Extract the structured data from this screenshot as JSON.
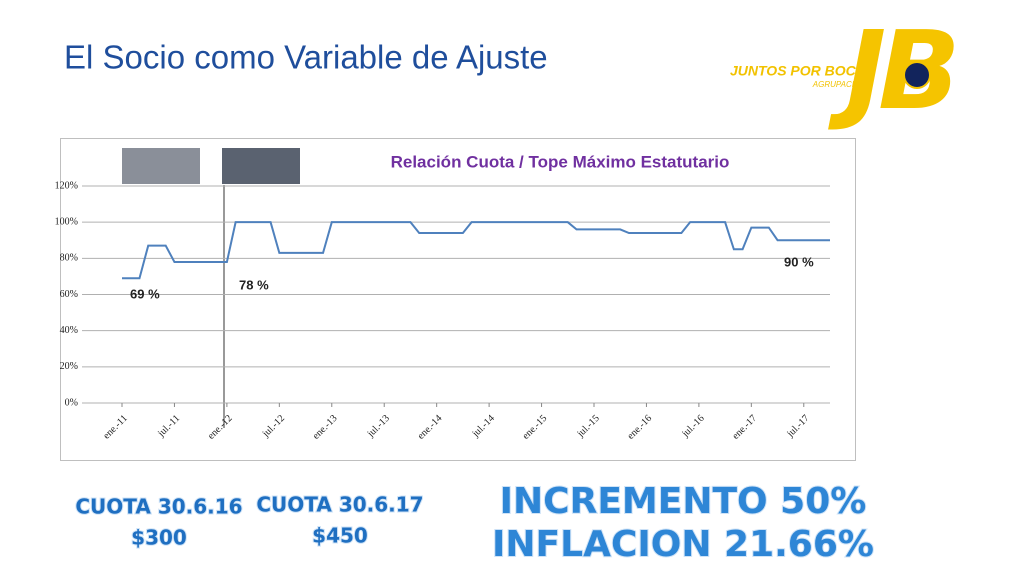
{
  "slide": {
    "title": "El Socio como Variable de Ajuste",
    "logo_name": "JUNTOS POR BOCA",
    "logo_sub": "AGRUPACIÓN",
    "logo_mark": "JB",
    "cuota_1_label": "CUOTA 30.6.16",
    "cuota_1_value": "$300",
    "cuota_2_label": "CUOTA 30.6.17",
    "cuota_2_value": "$450",
    "increase": "INCREMENTO 50%",
    "inflation": "INFLACION 21.66%"
  },
  "chart_data": {
    "type": "line",
    "title": "Relación Cuota / Tope Máximo Estatutario",
    "categories": [
      "ene.-11",
      null,
      null,
      null,
      null,
      null,
      "jul.-11",
      null,
      null,
      null,
      null,
      null,
      "ene.-12",
      null,
      null,
      null,
      null,
      null,
      "jul.-12",
      null,
      null,
      null,
      null,
      null,
      "ene.-13",
      null,
      null,
      null,
      null,
      null,
      "jul.-13",
      null,
      null,
      null,
      null,
      null,
      "ene.-14",
      null,
      null,
      null,
      null,
      null,
      "jul.-14",
      null,
      null,
      null,
      null,
      null,
      "ene.-15",
      null,
      null,
      null,
      null,
      null,
      "jul.-15",
      null,
      null,
      null,
      null,
      null,
      "ene.-16",
      null,
      null,
      null,
      null,
      null,
      "jul.-16",
      null,
      null,
      null,
      null,
      null,
      "ene.-17",
      null,
      null,
      null,
      null,
      null,
      "jul.-17",
      null,
      null,
      null
    ],
    "series": [
      {
        "name": "Relación",
        "color": "#4f81bd",
        "values": [
          69,
          69,
          69,
          87,
          87,
          87,
          78,
          78,
          78,
          78,
          78,
          78,
          78,
          100,
          100,
          100,
          100,
          100,
          83,
          83,
          83,
          83,
          83,
          83,
          100,
          100,
          100,
          100,
          100,
          100,
          100,
          100,
          100,
          100,
          94,
          94,
          94,
          94,
          94,
          94,
          100,
          100,
          100,
          100,
          100,
          100,
          100,
          100,
          100,
          100,
          100,
          100,
          96,
          96,
          96,
          96,
          96,
          96,
          94,
          94,
          94,
          94,
          94,
          94,
          94,
          100,
          100,
          100,
          100,
          100,
          85,
          85,
          97,
          97,
          97,
          90,
          90,
          90,
          90,
          90,
          90,
          90
        ]
      }
    ],
    "ylim": [
      0,
      120
    ],
    "yticks": [
      {
        "value": 0,
        "label": "0%"
      },
      {
        "value": 20,
        "label": "20%"
      },
      {
        "value": 40,
        "label": "40%"
      },
      {
        "value": 60,
        "label": "60%"
      },
      {
        "value": 80,
        "label": "80%"
      },
      {
        "value": 100,
        "label": "100%"
      },
      {
        "value": 120,
        "label": "120%"
      }
    ],
    "grid": true,
    "annotations": [
      "69 %",
      "78 %",
      "90 %"
    ]
  }
}
